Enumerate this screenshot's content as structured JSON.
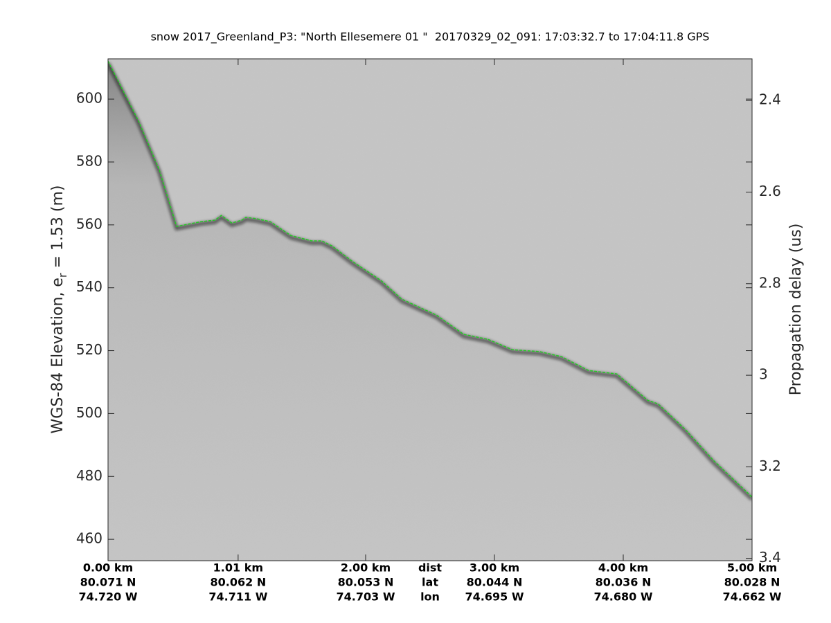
{
  "chart_data": {
    "type": "line",
    "title": "snow 2017_Greenland_P3: \"North Ellesemere 01 \"  20170329_02_091: 17:03:32.7 to 17:04:11.8 GPS",
    "ylabel": "WGS-84 Elevation, e",
    "ylabel_sub": "r",
    "ylabel_rest": " = 1.53 (m)",
    "y2label": "Propagation delay (us)",
    "xlim": [
      0,
      5
    ],
    "xticks": [
      {
        "value": 0,
        "label": "0.00 km"
      },
      {
        "value": 1.01,
        "label": "1.01 km"
      },
      {
        "value": 2,
        "label": "2.00 km"
      },
      {
        "value": 3,
        "label": "3.00 km"
      },
      {
        "value": 4,
        "label": "4.00 km"
      },
      {
        "value": 5,
        "label": "5.00 km"
      }
    ],
    "lat_labels": [
      "80.071 N",
      "80.062 N",
      "80.053 N",
      "80.044 N",
      "80.036 N",
      "80.028 N"
    ],
    "lon_labels": [
      "74.720 W",
      "74.711 W",
      "74.703 W",
      "74.695 W",
      "74.680 W",
      "74.662 W"
    ],
    "row_labels": [
      "dist",
      "lat",
      "lon"
    ],
    "ylim": [
      453.2,
      612.8
    ],
    "yticks": [
      460,
      480,
      500,
      520,
      540,
      560,
      580,
      600
    ],
    "y2lim": [
      3.405,
      2.309
    ],
    "y2ticks": [
      2.4,
      2.6,
      2.8,
      3,
      3.2,
      3.4
    ],
    "series": [
      {
        "name": "surface",
        "color": "#22cc22",
        "x": [
          0,
          0.237,
          0.398,
          0.532,
          0.72,
          0.83,
          0.88,
          0.96,
          1.04,
          1.07,
          1.15,
          1.26,
          1.42,
          1.58,
          1.66,
          1.74,
          1.9,
          2.12,
          2.28,
          2.55,
          2.76,
          2.95,
          3.14,
          3.35,
          3.52,
          3.73,
          3.95,
          4.19,
          4.27,
          4.48,
          4.7,
          5.0
        ],
        "values": [
          612.1,
          593.0,
          577.5,
          559.5,
          561.0,
          561.5,
          563.0,
          560.6,
          561.5,
          562.4,
          562.0,
          561.0,
          556.6,
          554.9,
          554.9,
          553.3,
          548.3,
          542.3,
          536.4,
          531.3,
          525.2,
          523.6,
          520.3,
          519.7,
          518.1,
          513.7,
          512.6,
          504.2,
          503.1,
          495.0,
          485.1,
          473.4
        ]
      }
    ]
  }
}
